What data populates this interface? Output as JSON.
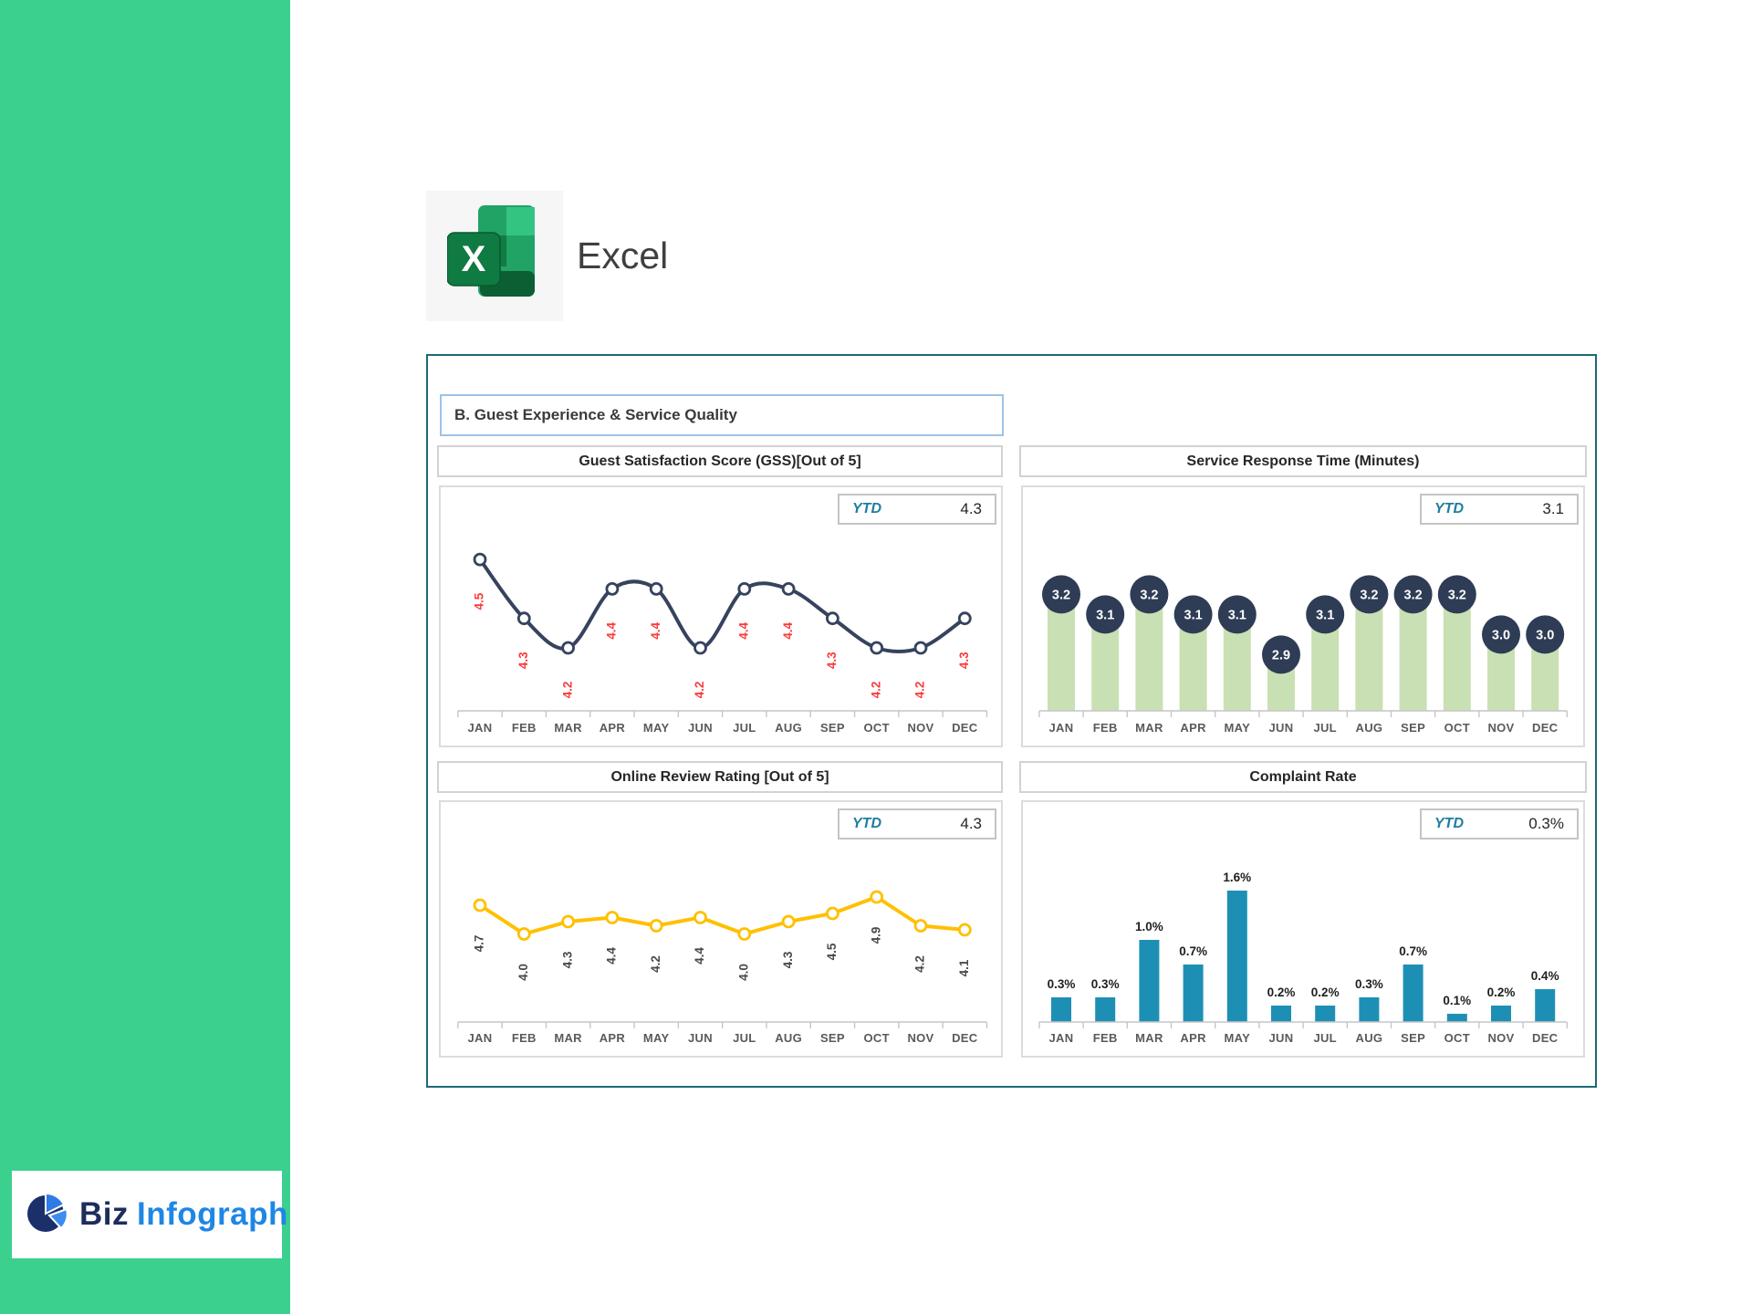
{
  "app": {
    "label": "Excel"
  },
  "logo": {
    "part1": "Biz",
    "part2": "Infograph"
  },
  "section": {
    "title": "B. Guest Experience & Service Quality"
  },
  "months": [
    "JAN",
    "FEB",
    "MAR",
    "APR",
    "MAY",
    "JUN",
    "JUL",
    "AUG",
    "SEP",
    "OCT",
    "NOV",
    "DEC"
  ],
  "colors": {
    "sidebar_green": "#3BD08E",
    "dashboard_border": "#1D6977",
    "section_border": "#9DC3E6",
    "ytd_accent": "#1F7E9E",
    "month_label": "#5A5A5A",
    "axis": "#C6C6C6"
  },
  "chart_data": [
    {
      "id": "gss",
      "type": "line",
      "title": "Guest Satisfaction Score (GSS)[Out of 5]",
      "ytd_label": "YTD",
      "ytd_value": "4.3",
      "categories": [
        "JAN",
        "FEB",
        "MAR",
        "APR",
        "MAY",
        "JUN",
        "JUL",
        "AUG",
        "SEP",
        "OCT",
        "NOV",
        "DEC"
      ],
      "values": [
        4.5,
        4.3,
        4.2,
        4.4,
        4.4,
        4.2,
        4.4,
        4.4,
        4.3,
        4.2,
        4.2,
        4.3
      ],
      "value_labels": [
        "4.5",
        "4.3",
        "4.2",
        "4.4",
        "4.4",
        "4.2",
        "4.4",
        "4.4",
        "4.3",
        "4.2",
        "4.2",
        "4.3"
      ],
      "smooth": true,
      "marker": "open-circle",
      "line_color": "#36435E",
      "label_color": "#FB3C3C",
      "ylim": [
        4.0,
        4.6
      ],
      "xlabel": "",
      "ylabel": ""
    },
    {
      "id": "service-response-time",
      "type": "bar",
      "title": "Service Response Time (Minutes)",
      "ytd_label": "YTD",
      "ytd_value": "3.1",
      "categories": [
        "JAN",
        "FEB",
        "MAR",
        "APR",
        "MAY",
        "JUN",
        "JUL",
        "AUG",
        "SEP",
        "OCT",
        "NOV",
        "DEC"
      ],
      "values": [
        3.2,
        3.1,
        3.2,
        3.1,
        3.1,
        2.9,
        3.1,
        3.2,
        3.2,
        3.2,
        3.0,
        3.0
      ],
      "value_labels": [
        "3.2",
        "3.1",
        "3.2",
        "3.1",
        "3.1",
        "2.9",
        "3.1",
        "3.2",
        "3.2",
        "3.2",
        "3.0",
        "3.0"
      ],
      "bar_color": "#C9E0B4",
      "badge_color": "#2E3C55",
      "badge_text_color": "#FFFFFF",
      "ylim": [
        2.6,
        3.4
      ],
      "xlabel": "",
      "ylabel": ""
    },
    {
      "id": "online-review-rating",
      "type": "line",
      "title": "Online Review Rating [Out of 5]",
      "ytd_label": "YTD",
      "ytd_value": "4.3",
      "categories": [
        "JAN",
        "FEB",
        "MAR",
        "APR",
        "MAY",
        "JUN",
        "JUL",
        "AUG",
        "SEP",
        "OCT",
        "NOV",
        "DEC"
      ],
      "values": [
        4.7,
        4.0,
        4.3,
        4.4,
        4.2,
        4.4,
        4.0,
        4.3,
        4.5,
        4.9,
        4.2,
        4.1
      ],
      "value_labels": [
        "4.7",
        "4.0",
        "4.3",
        "4.4",
        "4.2",
        "4.4",
        "4.0",
        "4.3",
        "4.5",
        "4.9",
        "4.2",
        "4.1"
      ],
      "smooth": false,
      "marker": "open-circle",
      "line_color": "#FFC000",
      "label_color": "#4A4A4A",
      "ylim": [
        2.0,
        5.5
      ],
      "xlabel": "",
      "ylabel": ""
    },
    {
      "id": "complaint-rate",
      "type": "bar",
      "title": "Complaint Rate",
      "ytd_label": "YTD",
      "ytd_value": "0.3%",
      "categories": [
        "JAN",
        "FEB",
        "MAR",
        "APR",
        "MAY",
        "JUN",
        "JUL",
        "AUG",
        "SEP",
        "OCT",
        "NOV",
        "DEC"
      ],
      "values": [
        0.3,
        0.3,
        1.0,
        0.7,
        1.6,
        0.2,
        0.2,
        0.3,
        0.7,
        0.1,
        0.2,
        0.4
      ],
      "value_labels": [
        "0.3%",
        "0.3%",
        "1.0%",
        "0.7%",
        "1.6%",
        "0.2%",
        "0.2%",
        "0.3%",
        "0.7%",
        "0.1%",
        "0.2%",
        "0.4%"
      ],
      "bar_color": "#1E8FB4",
      "label_color": "#1F1F1F",
      "ylim": [
        0,
        1.8
      ],
      "xlabel": "",
      "ylabel": ""
    }
  ]
}
